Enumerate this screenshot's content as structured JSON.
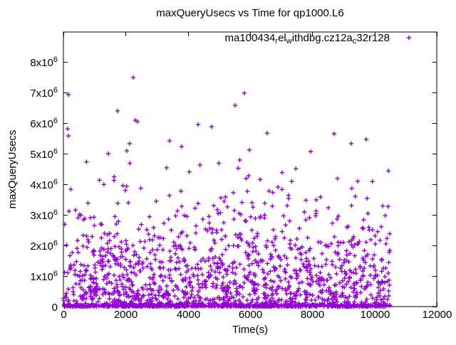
{
  "page": {
    "background": "#FFFFFF"
  },
  "colors": {
    "points": "#9400D3",
    "axis": "#000000",
    "text": "#000000",
    "background": "#FFFFFF"
  },
  "chart_data": {
    "type": "scatter",
    "title": "maxQueryUsecs vs Time for qp1000.L6",
    "xlabel": "Time(s)",
    "ylabel": "maxQueryUsecs",
    "xlim": [
      0,
      12000
    ],
    "ylim": [
      0,
      9000000
    ],
    "grid": false,
    "legend_position": "top-right-inside",
    "x_ticks": [
      {
        "value": 0,
        "label": "0"
      },
      {
        "value": 2000,
        "label": "2000"
      },
      {
        "value": 4000,
        "label": "4000"
      },
      {
        "value": 6000,
        "label": "6000"
      },
      {
        "value": 8000,
        "label": "8000"
      },
      {
        "value": 10000,
        "label": "10000"
      },
      {
        "value": 12000,
        "label": "12000"
      }
    ],
    "y_ticks": [
      {
        "value": 0,
        "label": "0"
      },
      {
        "value": 1000000,
        "label": "1x10^6"
      },
      {
        "value": 2000000,
        "label": "2x10^6"
      },
      {
        "value": 3000000,
        "label": "3x10^6"
      },
      {
        "value": 4000000,
        "label": "4x10^6"
      },
      {
        "value": 5000000,
        "label": "5x10^6"
      },
      {
        "value": 6000000,
        "label": "6x10^6"
      },
      {
        "value": 7000000,
        "label": "7x10^6"
      },
      {
        "value": 8000000,
        "label": "8x10^6"
      }
    ],
    "series": [
      {
        "name": "ma100434_rel_withdbg.cz12a_c32r128",
        "name_display_segments": [
          {
            "text": "ma100434"
          },
          {
            "text": "r",
            "script": "sub"
          },
          {
            "text": "el"
          },
          {
            "text": "w",
            "script": "sub"
          },
          {
            "text": "ithdbg.cz12a"
          },
          {
            "text": "c",
            "script": "sub"
          },
          {
            "text": "32r128"
          }
        ],
        "marker": "plus",
        "color": "#9400D3",
        "x_data_range": [
          0,
          10500
        ],
        "points_outliers": [
          [
            2244,
            7490000
          ],
          [
            160,
            6930000
          ],
          [
            5817,
            6980000
          ],
          [
            5519,
            6580000
          ],
          [
            1740,
            6400000
          ],
          [
            2313,
            6090000
          ],
          [
            2382,
            6050000
          ],
          [
            4328,
            5950000
          ],
          [
            4763,
            5880000
          ],
          [
            137,
            5810000
          ],
          [
            6549,
            5670000
          ],
          [
            8702,
            5650000
          ],
          [
            160,
            5580000
          ],
          [
            9733,
            5470000
          ],
          [
            3412,
            5420000
          ],
          [
            2130,
            5330000
          ],
          [
            9252,
            5330000
          ],
          [
            3801,
            5230000
          ],
          [
            5977,
            5120000
          ],
          [
            2037,
            5090000
          ],
          [
            7946,
            5070000
          ],
          [
            1443,
            5000000
          ]
        ],
        "point_cloud": {
          "seed": 1337,
          "x_min": 0,
          "x_max": 10500,
          "density_bands": [
            {
              "y_min": 0,
              "y_max": 60000,
              "count": 680
            },
            {
              "y_min": 60000,
              "y_max": 500000,
              "count": 350
            },
            {
              "y_min": 500000,
              "y_max": 1000000,
              "count": 270
            },
            {
              "y_min": 1000000,
              "y_max": 1500000,
              "count": 220
            },
            {
              "y_min": 1500000,
              "y_max": 2000000,
              "count": 155
            },
            {
              "y_min": 2000000,
              "y_max": 2500000,
              "count": 95
            },
            {
              "y_min": 2500000,
              "y_max": 3000000,
              "count": 62
            },
            {
              "y_min": 3000000,
              "y_max": 3500000,
              "count": 36
            },
            {
              "y_min": 3500000,
              "y_max": 4000000,
              "count": 22
            },
            {
              "y_min": 4000000,
              "y_max": 4500000,
              "count": 13
            },
            {
              "y_min": 4500000,
              "y_max": 5000000,
              "count": 8
            }
          ]
        }
      }
    ]
  }
}
